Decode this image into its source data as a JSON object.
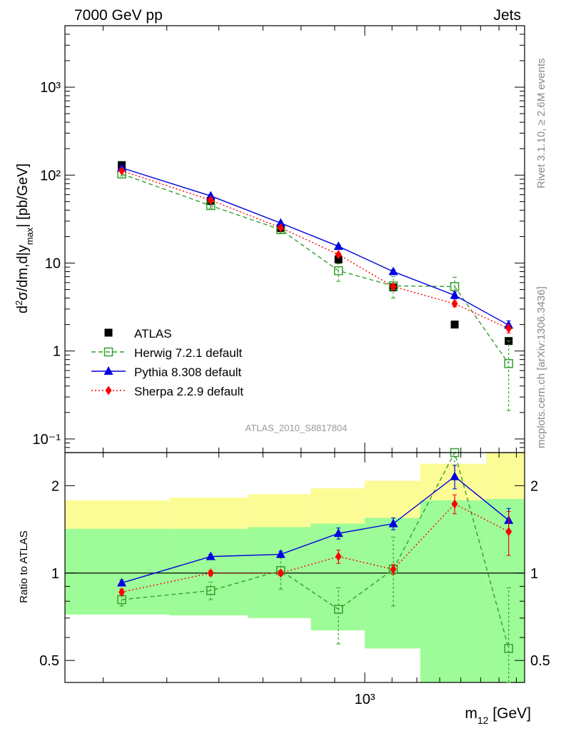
{
  "header": {
    "left": "7000 GeV pp",
    "right": "Jets"
  },
  "side_labels": {
    "top": "Rivet 3.1.10, ≥ 2.6M events",
    "bottom": "mcplots.cern.ch [arXiv:1306.3436]"
  },
  "analysis_label": "ATLAS_2010_S8817804",
  "chart_data": [
    {
      "type": "scatter",
      "panel": "main",
      "log_x": true,
      "log_y": true,
      "ylim": [
        0.07,
        5000
      ],
      "xlim": [
        350,
        1750
      ],
      "ylabel": "d²σ/dm,d|y_max| [pb/GeV]",
      "ytick_labels": [
        "10⁻¹",
        "1",
        "10",
        "10²",
        "10³"
      ],
      "ytick_values": [
        0.1,
        1,
        10,
        100,
        1000
      ],
      "x": [
        427,
        583,
        745,
        912,
        1105,
        1370,
        1655
      ],
      "legend": {
        "placement": "lower-left",
        "entries": [
          "ATLAS",
          "Herwig 7.2.1 default",
          "Pythia 8.308 default",
          "Sherpa 2.2.9 default"
        ]
      },
      "series": [
        {
          "name": "ATLAS",
          "color": "#000000",
          "marker": "square",
          "values": [
            130,
            51,
            25,
            11,
            5.3,
            2.0,
            1.3
          ]
        },
        {
          "name": "Herwig 7.2.1 default",
          "color": "#33a02c",
          "marker": "open-square",
          "line": "dashed",
          "values": [
            103,
            45,
            24,
            8.2,
            5.5,
            5.4,
            0.72
          ],
          "err_low": [
            98,
            42,
            22,
            6.2,
            4.0,
            4.3,
            0.21
          ],
          "err_high": [
            108,
            48,
            26,
            9.8,
            7.0,
            6.9,
            1.3
          ]
        },
        {
          "name": "Pythia 8.308 default",
          "color": "#0000e0",
          "marker": "triangle",
          "line": "solid",
          "values": [
            121,
            58,
            28.5,
            15.5,
            8.0,
            4.3,
            1.97
          ],
          "err_low": [
            118,
            56,
            27.5,
            14.9,
            7.6,
            3.9,
            1.75
          ],
          "err_high": [
            124,
            60,
            29.5,
            16.1,
            8.4,
            4.7,
            2.2
          ]
        },
        {
          "name": "Sherpa 2.2.9 default",
          "color": "#ff0000",
          "marker": "diamond",
          "line": "dotted",
          "values": [
            112,
            52,
            25.2,
            12.5,
            5.4,
            3.45,
            1.8
          ],
          "err_low": [
            109,
            50,
            24.5,
            12.0,
            5.1,
            3.2,
            1.6
          ],
          "err_high": [
            115,
            54,
            26,
            13.0,
            5.7,
            3.7,
            2.0
          ]
        }
      ]
    },
    {
      "type": "scatter",
      "panel": "ratio",
      "log_x": true,
      "log_y": true,
      "ylim": [
        0.42,
        2.6
      ],
      "xlim": [
        350,
        1750
      ],
      "ylabel": "Ratio to ATLAS",
      "xlabel": "m₁₂ [GeV]",
      "xtick_label": "10³",
      "xtick_value": 1000,
      "ytick_labels": [
        "0.5",
        "1",
        "2"
      ],
      "ytick_values": [
        0.5,
        1,
        2
      ],
      "reference_line": 1,
      "bands": {
        "bin_edges": [
          350,
          505,
          665,
          828,
          1000,
          1215,
          1530,
          1750
        ],
        "inner_low": [
          0.72,
          0.715,
          0.7,
          0.635,
          0.55,
          0.42,
          0.42
        ],
        "inner_high": [
          1.42,
          1.42,
          1.44,
          1.48,
          1.55,
          1.78,
          1.8
        ],
        "outer_low": [
          0.72,
          0.715,
          0.7,
          0.635,
          0.55,
          0.42,
          0.42
        ],
        "outer_high": [
          1.78,
          1.82,
          1.87,
          1.96,
          2.08,
          2.38,
          2.6
        ],
        "inner_color": "#9dfc97",
        "outer_color": "#fcfc97"
      },
      "x": [
        427,
        583,
        745,
        912,
        1105,
        1370,
        1655
      ],
      "series": [
        {
          "name": "Herwig 7.2.1 default",
          "color": "#33a02c",
          "marker": "open-square",
          "line": "dashed",
          "values": [
            0.81,
            0.87,
            1.02,
            0.75,
            1.03,
            2.65,
            0.55
          ],
          "err_low": [
            0.77,
            0.81,
            0.88,
            0.57,
            0.77,
            2.1,
            0.35
          ],
          "err_high": [
            0.85,
            0.93,
            1.16,
            0.89,
            1.33,
            3.2,
            0.89
          ]
        },
        {
          "name": "Pythia 8.308 default",
          "color": "#0000e0",
          "marker": "triangle",
          "line": "solid",
          "values": [
            0.925,
            1.14,
            1.16,
            1.37,
            1.48,
            2.15,
            1.52
          ],
          "err_low": [
            0.905,
            1.12,
            1.13,
            1.31,
            1.41,
            1.95,
            1.37
          ],
          "err_high": [
            0.945,
            1.16,
            1.19,
            1.43,
            1.55,
            2.35,
            1.67
          ]
        },
        {
          "name": "Sherpa 2.2.9 default",
          "color": "#ff0000",
          "marker": "diamond",
          "line": "dotted",
          "values": [
            0.86,
            1.0,
            1.0,
            1.14,
            1.03,
            1.73,
            1.39
          ],
          "err_low": [
            0.84,
            0.98,
            0.98,
            1.08,
            0.99,
            1.6,
            1.15
          ],
          "err_high": [
            0.88,
            1.02,
            1.02,
            1.2,
            1.07,
            1.86,
            1.63
          ]
        }
      ]
    }
  ]
}
